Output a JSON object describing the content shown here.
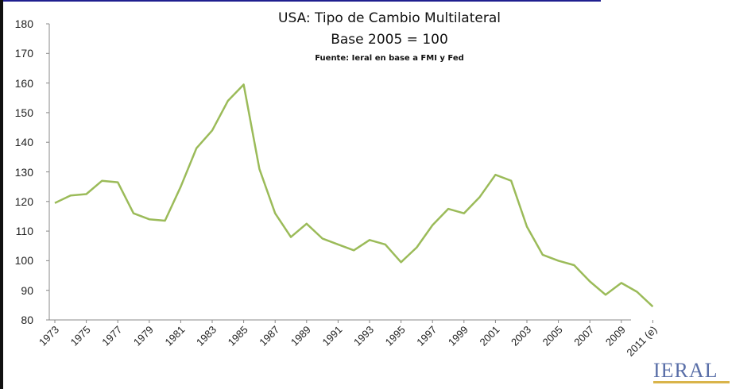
{
  "chart_data": {
    "type": "line",
    "title": "USA: Tipo de Cambio Multilateral",
    "subtitle": "Base 2005 = 100",
    "source": "Fuente: Ieral en base a FMI y Fed",
    "ylim": [
      80,
      180
    ],
    "yticks": [
      "180",
      "170",
      "160",
      "150",
      "140",
      "130",
      "120",
      "110",
      "100",
      "90",
      "80"
    ],
    "x_tick_labels": [
      "1973",
      "1975",
      "1977",
      "1979",
      "1981",
      "1983",
      "1985",
      "1987",
      "1989",
      "1991",
      "1993",
      "1995",
      "1997",
      "1999",
      "2001",
      "2003",
      "2005",
      "2007",
      "2009",
      "2011 (e)"
    ],
    "x": [
      "1973",
      "1974",
      "1975",
      "1976",
      "1977",
      "1978",
      "1979",
      "1980",
      "1981",
      "1982",
      "1983",
      "1984",
      "1985",
      "1986",
      "1987",
      "1988",
      "1989",
      "1990",
      "1991",
      "1992",
      "1993",
      "1994",
      "1995",
      "1996",
      "1997",
      "1998",
      "1999",
      "2000",
      "2001",
      "2002",
      "2003",
      "2004",
      "2005",
      "2006",
      "2007",
      "2008",
      "2009",
      "2010",
      "2011 (e)"
    ],
    "series": [
      {
        "values": [
          119.5,
          122,
          122.5,
          127,
          126.5,
          116,
          114,
          113.5,
          125,
          138,
          144,
          154,
          159.5,
          131,
          116,
          108,
          112.5,
          107.5,
          105.5,
          103.5,
          107,
          105.5,
          99.5,
          104.5,
          112,
          117.5,
          116,
          121.5,
          129,
          127,
          111.5,
          102,
          100,
          98.5,
          93,
          88.5,
          92.5,
          89.5,
          84.5
        ],
        "color": "#9bbb59"
      }
    ],
    "grid": false,
    "legend": "none"
  },
  "logo": {
    "text": "IERAL"
  }
}
